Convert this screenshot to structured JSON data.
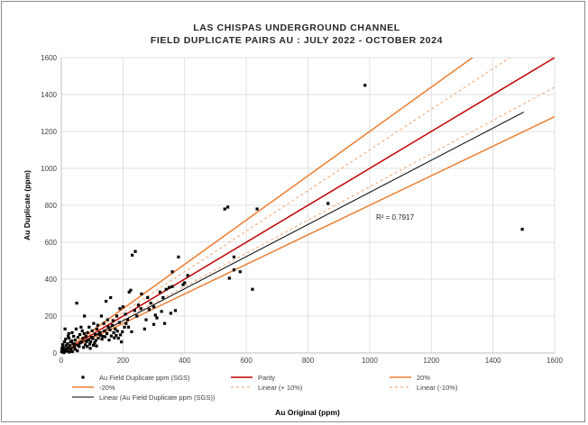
{
  "chart_data": {
    "type": "scatter",
    "title_lines": [
      "LAS CHISPAS UNDERGROUND CHANNEL",
      "FIELD DUPLICATE PAIRS AU : JULY 2022 - OCTOBER 2024"
    ],
    "xlabel": "Au Original (ppm)",
    "ylabel": "Au Duplicate (ppm)",
    "xlim": [
      0,
      1600
    ],
    "ylim": [
      0,
      1600
    ],
    "xticks": [
      0,
      200,
      400,
      600,
      800,
      1000,
      1200,
      1400,
      1600
    ],
    "yticks": [
      0,
      200,
      400,
      600,
      800,
      1000,
      1200,
      1400,
      1600
    ],
    "grid": true,
    "legend_position": "bottom",
    "annotation": "R² = 0.7917",
    "colors": {
      "points": "#000000",
      "parity": "#c00000",
      "band20": "#ed7d31",
      "band10": "#f4b183",
      "trend": "#000000",
      "grid": "#d9d9d9"
    },
    "lines": [
      {
        "name": "Parity",
        "key": "parity",
        "slope": 1.0,
        "x_end": 1600
      },
      {
        "name": "20%",
        "key": "band20",
        "slope": 1.2,
        "x_end": 1600
      },
      {
        "name": "-20%",
        "key": "band20",
        "slope": 0.8,
        "x_end": 1600
      },
      {
        "name": "Linear (+ 10%)",
        "key": "band10",
        "slope": 1.1,
        "x_end": 1600,
        "dashed": true
      },
      {
        "name": "Linear (-10%)",
        "key": "band10",
        "slope": 0.9,
        "x_end": 1600,
        "dashed": true
      },
      {
        "name": "Linear (Au Field Duplicate ppm (SGS))",
        "key": "trend",
        "slope": 0.87,
        "x_end": 1500
      }
    ],
    "legend": [
      {
        "label": "Au Field Duplicate ppm (SGS)",
        "kind": "marker"
      },
      {
        "label": "Parity",
        "kind": "line",
        "key": "parity"
      },
      {
        "label": "20%",
        "kind": "line",
        "key": "band20"
      },
      {
        "label": "-20%",
        "kind": "line",
        "key": "band20"
      },
      {
        "label": "Linear (+ 10%)",
        "kind": "dash",
        "key": "band10"
      },
      {
        "label": "Linear (-10%)",
        "kind": "dash",
        "key": "band10"
      },
      {
        "label": "Linear (Au Field Duplicate ppm (SGS))",
        "kind": "line",
        "key": "trend"
      }
    ],
    "series": [
      {
        "name": "Au Field Duplicate ppm (SGS)",
        "points": [
          [
            985,
            1450
          ],
          [
            1495,
            670
          ],
          [
            865,
            810
          ],
          [
            540,
            790
          ],
          [
            635,
            780
          ],
          [
            530,
            780
          ],
          [
            580,
            440
          ],
          [
            560,
            450
          ],
          [
            545,
            405
          ],
          [
            620,
            345
          ],
          [
            560,
            520
          ],
          [
            380,
            520
          ],
          [
            360,
            440
          ],
          [
            410,
            420
          ],
          [
            400,
            380
          ],
          [
            395,
            370
          ],
          [
            360,
            360
          ],
          [
            350,
            355
          ],
          [
            340,
            345
          ],
          [
            330,
            300
          ],
          [
            320,
            330
          ],
          [
            310,
            190
          ],
          [
            300,
            250
          ],
          [
            290,
            270
          ],
          [
            280,
            300
          ],
          [
            275,
            180
          ],
          [
            270,
            130
          ],
          [
            260,
            320
          ],
          [
            250,
            260
          ],
          [
            245,
            200
          ],
          [
            240,
            550
          ],
          [
            230,
            530
          ],
          [
            225,
            340
          ],
          [
            220,
            330
          ],
          [
            215,
            180
          ],
          [
            210,
            160
          ],
          [
            205,
            140
          ],
          [
            200,
            250
          ],
          [
            195,
            60
          ],
          [
            190,
            240
          ],
          [
            185,
            80
          ],
          [
            180,
            200
          ],
          [
            175,
            130
          ],
          [
            170,
            110
          ],
          [
            165,
            150
          ],
          [
            160,
            300
          ],
          [
            155,
            70
          ],
          [
            150,
            180
          ],
          [
            145,
            280
          ],
          [
            140,
            120
          ],
          [
            135,
            90
          ],
          [
            130,
            200
          ],
          [
            125,
            110
          ],
          [
            120,
            80
          ],
          [
            115,
            130
          ],
          [
            110,
            100
          ],
          [
            105,
            160
          ],
          [
            100,
            120
          ],
          [
            95,
            60
          ],
          [
            90,
            140
          ],
          [
            85,
            110
          ],
          [
            80,
            90
          ],
          [
            75,
            200
          ],
          [
            70,
            80
          ],
          [
            65,
            60
          ],
          [
            60,
            100
          ],
          [
            55,
            40
          ],
          [
            50,
            270
          ],
          [
            48,
            130
          ],
          [
            45,
            70
          ],
          [
            42,
            30
          ],
          [
            40,
            90
          ],
          [
            38,
            50
          ],
          [
            35,
            110
          ],
          [
            32,
            20
          ],
          [
            30,
            60
          ],
          [
            28,
            40
          ],
          [
            25,
            80
          ],
          [
            22,
            30
          ],
          [
            20,
            50
          ],
          [
            18,
            10
          ],
          [
            15,
            40
          ],
          [
            12,
            20
          ],
          [
            10,
            60
          ],
          [
            8,
            15
          ],
          [
            6,
            30
          ],
          [
            5,
            10
          ],
          [
            4,
            45
          ],
          [
            3,
            5
          ],
          [
            2,
            25
          ],
          [
            1,
            8
          ],
          [
            12,
            130
          ],
          [
            22,
            90
          ],
          [
            30,
            15
          ],
          [
            45,
            20
          ],
          [
            58,
            35
          ],
          [
            68,
            120
          ],
          [
            78,
            45
          ],
          [
            88,
            70
          ],
          [
            98,
            85
          ],
          [
            108,
            55
          ],
          [
            118,
            150
          ],
          [
            128,
            95
          ],
          [
            138,
            160
          ],
          [
            148,
            105
          ],
          [
            158,
            125
          ],
          [
            168,
            175
          ],
          [
            178,
            95
          ],
          [
            188,
            165
          ],
          [
            198,
            115
          ],
          [
            208,
            210
          ],
          [
            218,
            140
          ],
          [
            228,
            115
          ],
          [
            238,
            230
          ],
          [
            258,
            240
          ],
          [
            285,
            235
          ],
          [
            305,
            205
          ],
          [
            325,
            225
          ],
          [
            335,
            160
          ],
          [
            355,
            215
          ],
          [
            370,
            230
          ],
          [
            300,
            155
          ],
          [
            52,
            12
          ],
          [
            36,
            8
          ],
          [
            26,
            5
          ],
          [
            16,
            22
          ],
          [
            62,
            55
          ],
          [
            72,
            30
          ],
          [
            82,
            62
          ],
          [
            92,
            48
          ],
          [
            102,
            78
          ],
          [
            112,
            68
          ],
          [
            122,
            102
          ],
          [
            132,
            75
          ],
          [
            142,
            88
          ],
          [
            152,
            142
          ],
          [
            162,
            92
          ],
          [
            172,
            82
          ],
          [
            182,
            118
          ],
          [
            192,
            98
          ],
          [
            14,
            75
          ],
          [
            24,
            105
          ],
          [
            34,
            65
          ],
          [
            44,
            48
          ],
          [
            54,
            85
          ],
          [
            64,
            140
          ],
          [
            74,
            105
          ],
          [
            84,
            35
          ],
          [
            94,
            25
          ],
          [
            104,
            42
          ],
          [
            114,
            38
          ],
          [
            9,
            2
          ]
        ]
      }
    ]
  }
}
